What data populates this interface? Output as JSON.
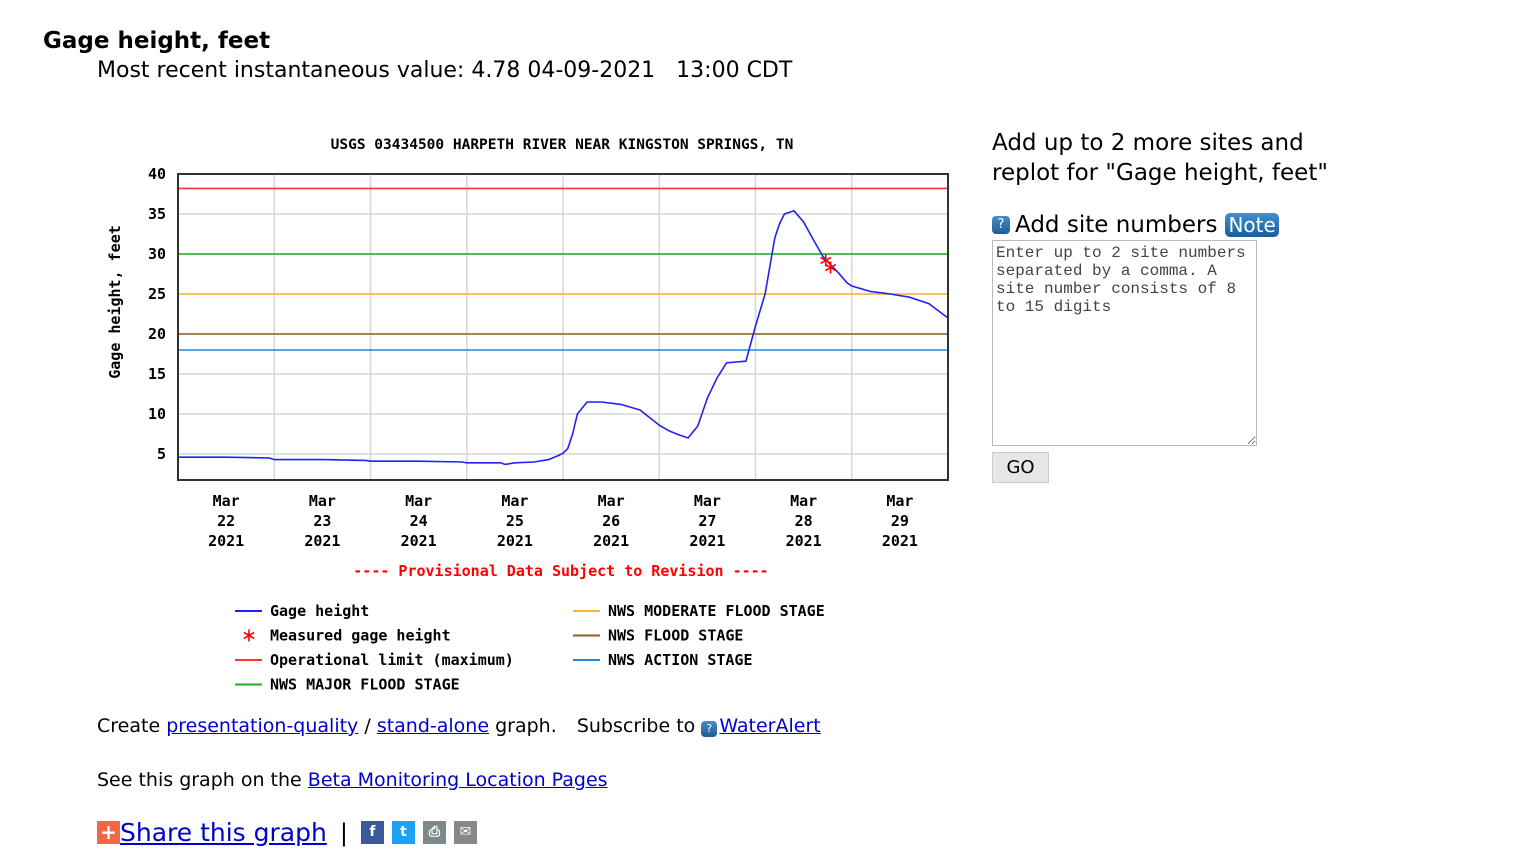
{
  "header": {
    "title": "Gage height, feet",
    "recent_label": "Most recent instantaneous value:",
    "recent_value": "4.78",
    "recent_date": "04-09-2021",
    "recent_time": "13:00 CDT"
  },
  "chart_data": {
    "type": "line",
    "title": "USGS 03434500 HARPETH RIVER NEAR KINGSTON SPRINGS, TN",
    "xlabel": "",
    "ylabel": "Gage height, feet",
    "ylim": [
      1.75,
      40
    ],
    "yticks": [
      5,
      10,
      15,
      20,
      25,
      30,
      35,
      40
    ],
    "x_tick_labels": [
      [
        "Mar",
        "22",
        "2021"
      ],
      [
        "Mar",
        "23",
        "2021"
      ],
      [
        "Mar",
        "24",
        "2021"
      ],
      [
        "Mar",
        "25",
        "2021"
      ],
      [
        "Mar",
        "26",
        "2021"
      ],
      [
        "Mar",
        "27",
        "2021"
      ],
      [
        "Mar",
        "28",
        "2021"
      ],
      [
        "Mar",
        "29",
        "2021"
      ]
    ],
    "xlim_days": [
      0,
      8
    ],
    "grid": true,
    "note": "---- Provisional Data Subject to Revision ----",
    "series": [
      {
        "name": "Gage height",
        "color": "#2222ee",
        "x_days_from_mar22": [
          0,
          0.5,
          0.95,
          1.0,
          1.5,
          1.95,
          2.0,
          2.5,
          2.95,
          3.0,
          3.35,
          3.4,
          3.5,
          3.7,
          3.85,
          3.95,
          4.0,
          4.05,
          4.1,
          4.15,
          4.25,
          4.4,
          4.6,
          4.8,
          5.0,
          5.1,
          5.2,
          5.3,
          5.4,
          5.5,
          5.6,
          5.7,
          5.8,
          5.9,
          6.0,
          6.1,
          6.2,
          6.25,
          6.3,
          6.4,
          6.5,
          6.6,
          6.7,
          6.8,
          6.85,
          6.95,
          7.0,
          7.2,
          7.4,
          7.6,
          7.8,
          8.0
        ],
        "y_feet": [
          4.6,
          4.6,
          4.5,
          4.3,
          4.3,
          4.2,
          4.1,
          4.1,
          4.0,
          3.9,
          3.9,
          3.7,
          3.9,
          4.0,
          4.3,
          4.8,
          5.1,
          5.7,
          7.5,
          10.0,
          11.5,
          11.5,
          11.2,
          10.5,
          8.6,
          7.9,
          7.4,
          7.0,
          8.5,
          12.0,
          14.5,
          16.4,
          16.5,
          16.6,
          21.0,
          25.0,
          32.0,
          33.8,
          35.0,
          35.4,
          34.0,
          31.8,
          29.7,
          28.4,
          27.8,
          26.4,
          26.0,
          25.3,
          25.0,
          24.6,
          23.8,
          22.0
        ]
      },
      {
        "name": "Measured gage height",
        "color": "#ff0000",
        "marker": "asterisk",
        "x_days_from_mar22": [
          6.73,
          6.78
        ],
        "y_feet": [
          29.2,
          28.3
        ]
      }
    ],
    "thresholds": [
      {
        "name": "Operational limit (maximum)",
        "value": 38.2,
        "color": "#ff3333"
      },
      {
        "name": "NWS MAJOR FLOOD STAGE",
        "value": 30,
        "color": "#22aa22"
      },
      {
        "name": "NWS MODERATE FLOOD STAGE",
        "value": 25,
        "color": "#ffb33a"
      },
      {
        "name": "NWS FLOOD STAGE",
        "value": 20,
        "color": "#8b5e2b"
      },
      {
        "name": "NWS ACTION STAGE",
        "value": 18,
        "color": "#2288dd"
      }
    ],
    "legend": {
      "left": [
        "Gage height",
        "Measured gage height",
        "Operational limit (maximum)",
        "NWS MAJOR FLOOD STAGE"
      ],
      "right": [
        "NWS MODERATE FLOOD STAGE",
        "NWS FLOOD STAGE",
        "NWS ACTION STAGE"
      ],
      "position": "bottom"
    }
  },
  "sidebar": {
    "heading": "Add up to 2 more sites and replot for \"Gage height, feet\"",
    "add_label": "Add site numbers",
    "note_label": "Note",
    "help_glyph": "?",
    "textarea_placeholder": "Enter up to 2 site numbers separated by a comma. A site number consists of 8 to 15 digits",
    "go_label": "GO"
  },
  "footer": {
    "create_prefix": "Create",
    "presentation_link": "presentation-quality",
    "slash": "/",
    "standalone_link": "stand-alone",
    "graph_suffix": "graph.",
    "subscribe_prefix": "Subscribe to",
    "wateralert_link": "WaterAlert",
    "see_prefix": "See this graph on the",
    "beta_link": "Beta Monitoring Location Pages",
    "share_link": "Share this graph",
    "share_sep": "|",
    "icons": {
      "plus": "+",
      "facebook": "f",
      "twitter": "t",
      "print": "⎙",
      "email": "✉"
    }
  }
}
